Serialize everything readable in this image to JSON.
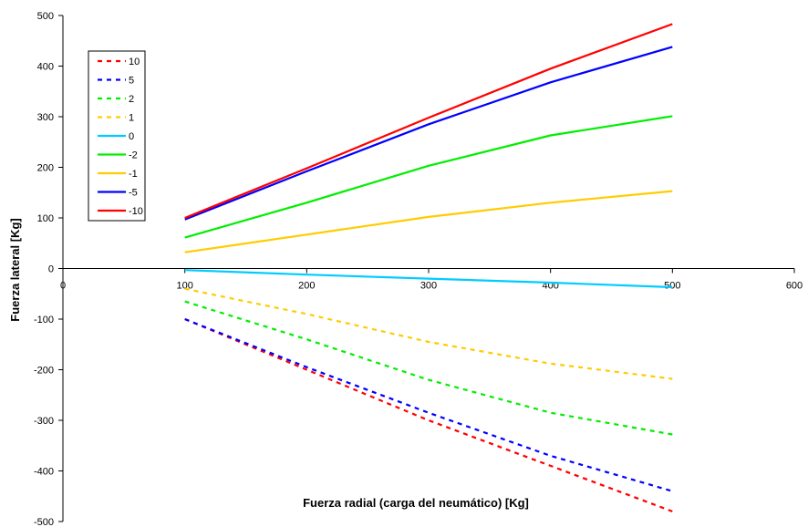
{
  "chart_data": {
    "type": "line",
    "title": "",
    "xlabel": "Fuerza radial (carga del neumático) [Kg]",
    "ylabel": "Fuerza lateral [Kg]",
    "xlim": [
      0,
      600
    ],
    "ylim": [
      -500,
      500
    ],
    "x_ticks": [
      "0",
      "100",
      "200",
      "300",
      "400",
      "500",
      "600"
    ],
    "y_ticks": [
      "500",
      "400",
      "300",
      "200",
      "100",
      "0",
      "-100",
      "-200",
      "-300",
      "-400",
      "-500"
    ],
    "grid": false,
    "legend_position": "top-left",
    "x": [
      100,
      200,
      300,
      400,
      500
    ],
    "series": [
      {
        "name": "10",
        "color": "#ff0000",
        "dash": true,
        "values": [
          -100,
          -200,
          -300,
          -390,
          -480
        ]
      },
      {
        "name": "5",
        "color": "#0000ff",
        "dash": true,
        "values": [
          -100,
          -195,
          -285,
          -370,
          -440
        ]
      },
      {
        "name": "2",
        "color": "#00ee00",
        "dash": true,
        "values": [
          -65,
          -140,
          -220,
          -285,
          -328
        ]
      },
      {
        "name": "1",
        "color": "#ffcc00",
        "dash": true,
        "values": [
          -40,
          -90,
          -145,
          -188,
          -218
        ]
      },
      {
        "name": "0",
        "color": "#00ccff",
        "dash": false,
        "values": [
          -3,
          -12,
          -20,
          -28,
          -37
        ]
      },
      {
        "name": "-2",
        "color": "#00ee00",
        "dash": false,
        "values": [
          61,
          130,
          203,
          263,
          301
        ]
      },
      {
        "name": "-1",
        "color": "#ffcc00",
        "dash": false,
        "values": [
          32,
          67,
          102,
          130,
          153
        ]
      },
      {
        "name": "-5",
        "color": "#0000ff",
        "dash": false,
        "values": [
          97,
          192,
          285,
          368,
          438
        ]
      },
      {
        "name": "-10",
        "color": "#ff0000",
        "dash": false,
        "values": [
          100,
          198,
          298,
          395,
          483
        ]
      }
    ]
  }
}
